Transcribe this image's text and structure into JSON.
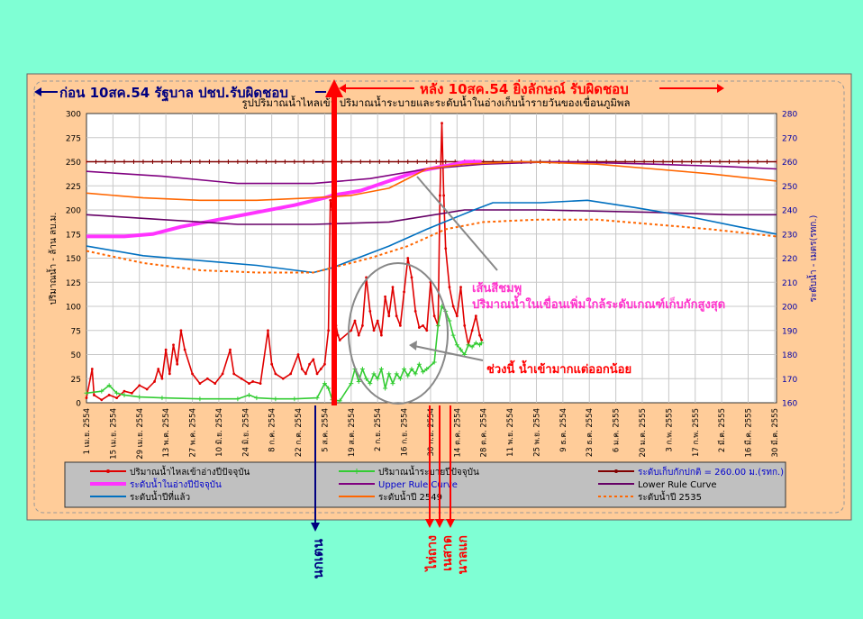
{
  "colors": {
    "page_bg": "#7fffd4",
    "panel_bg": "#ffcc99",
    "plot_bg": "#ffffff",
    "legend_bg": "#c0c0c0",
    "inflow": "#e00000",
    "outflow": "#33cc33",
    "normal_level": "#800000",
    "current_level": "#ff33ff",
    "upper_rule": "#800080",
    "lower_rule": "#660066",
    "last_year": "#0070c0",
    "year_2549": "#ff6600",
    "year_2535": "#ff6600",
    "ann_red": "#ff0000",
    "ann_blue": "#000080",
    "ann_pink": "#ff33cc"
  },
  "annotations": {
    "before": "ก่อน 10สค.54  รัฐบาล ปชป.รับผิดชอบ",
    "after": "หลัง 10สค.54  ยิ่งลักษณ์ รับผิดชอบ",
    "pink_line_1": "เส้นสีชมพู",
    "pink_line_2": "ปริมาณน้ำในเขื่อนเพิ่มใกล้ระดับเกณฑ์เก็บกักสูงสุด",
    "in_out": "ช่วงนี้ น้ำเข้ามากแต่ออกน้อย",
    "nok_ten": "นกเตน",
    "haima": "ไห่ถาง",
    "nesat": "เนสาด",
    "nalgae": "นาลแก"
  },
  "chart_data": {
    "type": "line",
    "title": "รูปปริมาณน้ำไหลเข้า ปริมาณน้ำระบายและระดับน้ำในอ่างเก็บน้ำรายวันของเขื่อนภูมิพล",
    "ylabel": "ปริมาณน้ำ - ล้าน ลบ.ม.",
    "y2label": "ระดับน้ำ - เมตร(รทก.)",
    "ylim": [
      0,
      300
    ],
    "y2lim": [
      160,
      280
    ],
    "yticks": [
      "0",
      "25",
      "50",
      "75",
      "100",
      "125",
      "150",
      "175",
      "200",
      "225",
      "250",
      "275",
      "300"
    ],
    "y2ticks": [
      "160",
      "170",
      "180",
      "190",
      "200",
      "210",
      "220",
      "230",
      "240",
      "250",
      "260",
      "270",
      "280"
    ],
    "xlim": [
      0,
      365
    ],
    "xticks": [
      {
        "day": 0,
        "label": "1 เม.ย. 2554"
      },
      {
        "day": 14,
        "label": "15 เม.ย. 2554"
      },
      {
        "day": 28,
        "label": "29 เม.ย. 2554"
      },
      {
        "day": 42,
        "label": "13 พ.ค. 2554"
      },
      {
        "day": 56,
        "label": "27 พ.ค. 2554"
      },
      {
        "day": 70,
        "label": "10 มิ.ย. 2554"
      },
      {
        "day": 84,
        "label": "24 มิ.ย. 2554"
      },
      {
        "day": 98,
        "label": "8 ก.ค. 2554"
      },
      {
        "day": 112,
        "label": "22 ก.ค. 2554"
      },
      {
        "day": 126,
        "label": "5 ส.ค. 2554"
      },
      {
        "day": 140,
        "label": "19 ส.ค. 2554"
      },
      {
        "day": 154,
        "label": "2 ก.ย. 2554"
      },
      {
        "day": 168,
        "label": "16 ก.ย. 2554"
      },
      {
        "day": 182,
        "label": "30 ก.ย. 2554"
      },
      {
        "day": 196,
        "label": "14 ต.ค. 2554"
      },
      {
        "day": 210,
        "label": "28 ต.ค. 2554"
      },
      {
        "day": 224,
        "label": "11 พ.ย. 2554"
      },
      {
        "day": 238,
        "label": "25 พ.ย. 2554"
      },
      {
        "day": 252,
        "label": "9 ธ.ค. 2554"
      },
      {
        "day": 266,
        "label": "23 ธ.ค. 2554"
      },
      {
        "day": 280,
        "label": "6 ม.ค. 2555"
      },
      {
        "day": 294,
        "label": "20 ม.ค. 2555"
      },
      {
        "day": 308,
        "label": "3 ก.พ. 2555"
      },
      {
        "day": 322,
        "label": "17 ก.พ. 2555"
      },
      {
        "day": 336,
        "label": "2 มี.ค. 2555"
      },
      {
        "day": 350,
        "label": "16 มี.ค. 2555"
      },
      {
        "day": 364,
        "label": "30 มี.ค. 2555"
      }
    ],
    "legend": [
      {
        "key": "inflow",
        "label": "ปริมาณน้ำไหลเข้าอ่างปีปัจจุบัน",
        "style": "marker-line"
      },
      {
        "key": "outflow",
        "label": "ปริมาณน้ำระบายปีปัจจุบัน",
        "style": "cross-line"
      },
      {
        "key": "normal_level",
        "label": "ระดับเก็บกักปกติ = 260.00 ม.(รทก.)",
        "style": "marker-line"
      },
      {
        "key": "current_level",
        "label": "ระดับน้ำในอ่างปีปัจจุบัน",
        "style": "thick-line"
      },
      {
        "key": "upper_rule",
        "label": "Upper  Rule Curve",
        "style": "line"
      },
      {
        "key": "lower_rule",
        "label": "Lower  Rule Curve",
        "style": "line"
      },
      {
        "key": "last_year",
        "label": "ระดับน้ำปีที่แล้ว",
        "style": "line"
      },
      {
        "key": "year_2549",
        "label": "ระดับน้ำปี 2549",
        "style": "line"
      },
      {
        "key": "year_2535",
        "label": "ระดับน้ำปี 2535",
        "style": "dashed-line"
      }
    ],
    "series": [
      {
        "key": "inflow",
        "axis": "left",
        "points": [
          [
            0,
            5
          ],
          [
            3,
            35
          ],
          [
            4,
            8
          ],
          [
            8,
            3
          ],
          [
            12,
            8
          ],
          [
            16,
            5
          ],
          [
            20,
            12
          ],
          [
            24,
            10
          ],
          [
            28,
            18
          ],
          [
            32,
            14
          ],
          [
            36,
            22
          ],
          [
            38,
            35
          ],
          [
            40,
            25
          ],
          [
            42,
            55
          ],
          [
            44,
            30
          ],
          [
            46,
            60
          ],
          [
            48,
            40
          ],
          [
            50,
            75
          ],
          [
            52,
            55
          ],
          [
            56,
            30
          ],
          [
            60,
            20
          ],
          [
            64,
            25
          ],
          [
            68,
            20
          ],
          [
            72,
            30
          ],
          [
            76,
            55
          ],
          [
            78,
            30
          ],
          [
            82,
            25
          ],
          [
            86,
            20
          ],
          [
            88,
            22
          ],
          [
            92,
            20
          ],
          [
            96,
            75
          ],
          [
            98,
            40
          ],
          [
            100,
            30
          ],
          [
            104,
            25
          ],
          [
            108,
            30
          ],
          [
            112,
            50
          ],
          [
            114,
            35
          ],
          [
            116,
            30
          ],
          [
            118,
            40
          ],
          [
            120,
            45
          ],
          [
            122,
            30
          ],
          [
            124,
            35
          ],
          [
            126,
            40
          ],
          [
            128,
            75
          ],
          [
            129,
            210
          ],
          [
            130,
            200
          ],
          [
            131,
            120
          ],
          [
            132,
            80
          ],
          [
            133,
            70
          ],
          [
            134,
            65
          ],
          [
            140,
            75
          ],
          [
            142,
            85
          ],
          [
            144,
            70
          ],
          [
            146,
            80
          ],
          [
            148,
            130
          ],
          [
            150,
            95
          ],
          [
            152,
            75
          ],
          [
            154,
            85
          ],
          [
            156,
            70
          ],
          [
            158,
            110
          ],
          [
            160,
            90
          ],
          [
            162,
            120
          ],
          [
            164,
            90
          ],
          [
            166,
            80
          ],
          [
            168,
            115
          ],
          [
            170,
            150
          ],
          [
            172,
            130
          ],
          [
            174,
            95
          ],
          [
            176,
            78
          ],
          [
            178,
            80
          ],
          [
            180,
            75
          ],
          [
            182,
            125
          ],
          [
            184,
            90
          ],
          [
            186,
            80
          ],
          [
            187,
            215
          ],
          [
            188,
            290
          ],
          [
            189,
            215
          ],
          [
            190,
            160
          ],
          [
            192,
            120
          ],
          [
            194,
            100
          ],
          [
            196,
            90
          ],
          [
            198,
            120
          ],
          [
            200,
            80
          ],
          [
            202,
            60
          ],
          [
            204,
            75
          ],
          [
            206,
            90
          ],
          [
            208,
            70
          ],
          [
            209,
            65
          ]
        ]
      },
      {
        "key": "outflow",
        "axis": "left",
        "points": [
          [
            0,
            10
          ],
          [
            8,
            12
          ],
          [
            12,
            18
          ],
          [
            16,
            10
          ],
          [
            20,
            8
          ],
          [
            28,
            6
          ],
          [
            40,
            5
          ],
          [
            60,
            4
          ],
          [
            80,
            4
          ],
          [
            86,
            8
          ],
          [
            90,
            5
          ],
          [
            100,
            4
          ],
          [
            110,
            4
          ],
          [
            122,
            5
          ],
          [
            126,
            20
          ],
          [
            128,
            15
          ],
          [
            130,
            3
          ],
          [
            134,
            2
          ],
          [
            140,
            20
          ],
          [
            142,
            35
          ],
          [
            144,
            22
          ],
          [
            146,
            35
          ],
          [
            148,
            25
          ],
          [
            150,
            20
          ],
          [
            152,
            30
          ],
          [
            154,
            25
          ],
          [
            156,
            35
          ],
          [
            158,
            15
          ],
          [
            160,
            30
          ],
          [
            162,
            20
          ],
          [
            164,
            30
          ],
          [
            166,
            25
          ],
          [
            168,
            35
          ],
          [
            170,
            28
          ],
          [
            172,
            35
          ],
          [
            174,
            30
          ],
          [
            176,
            40
          ],
          [
            178,
            32
          ],
          [
            180,
            35
          ],
          [
            184,
            42
          ],
          [
            186,
            80
          ],
          [
            188,
            100
          ],
          [
            190,
            95
          ],
          [
            192,
            85
          ],
          [
            194,
            70
          ],
          [
            196,
            60
          ],
          [
            198,
            55
          ],
          [
            200,
            50
          ],
          [
            202,
            60
          ],
          [
            204,
            58
          ],
          [
            206,
            62
          ],
          [
            208,
            60
          ],
          [
            209,
            62
          ]
        ]
      },
      {
        "key": "normal_level",
        "axis": "right",
        "style": "marker",
        "points": [
          [
            0,
            260
          ],
          [
            365,
            260
          ]
        ]
      },
      {
        "key": "current_level",
        "axis": "right",
        "width": 4,
        "points": [
          [
            0,
            229
          ],
          [
            20,
            229
          ],
          [
            35,
            230
          ],
          [
            50,
            233
          ],
          [
            70,
            236
          ],
          [
            90,
            239
          ],
          [
            110,
            242
          ],
          [
            126,
            245
          ],
          [
            130,
            246
          ],
          [
            145,
            248
          ],
          [
            160,
            252
          ],
          [
            175,
            256
          ],
          [
            188,
            258
          ],
          [
            195,
            259
          ],
          [
            200,
            260
          ],
          [
            209,
            260
          ]
        ]
      },
      {
        "key": "upper_rule",
        "axis": "right",
        "points": [
          [
            0,
            256
          ],
          [
            40,
            254
          ],
          [
            80,
            251
          ],
          [
            120,
            251
          ],
          [
            150,
            253
          ],
          [
            180,
            257
          ],
          [
            210,
            259
          ],
          [
            250,
            260
          ],
          [
            300,
            259
          ],
          [
            340,
            258
          ],
          [
            365,
            257
          ]
        ]
      },
      {
        "key": "lower_rule",
        "axis": "right",
        "points": [
          [
            0,
            238
          ],
          [
            40,
            236
          ],
          [
            80,
            234
          ],
          [
            120,
            234
          ],
          [
            160,
            235
          ],
          [
            200,
            240
          ],
          [
            240,
            240
          ],
          [
            300,
            239
          ],
          [
            340,
            238
          ],
          [
            365,
            238
          ]
        ]
      },
      {
        "key": "last_year",
        "axis": "right",
        "points": [
          [
            0,
            225
          ],
          [
            30,
            221
          ],
          [
            60,
            219
          ],
          [
            90,
            217
          ],
          [
            120,
            214
          ],
          [
            130,
            216
          ],
          [
            160,
            225
          ],
          [
            180,
            232
          ],
          [
            205,
            240
          ],
          [
            215,
            243
          ],
          [
            240,
            243
          ],
          [
            265,
            244
          ],
          [
            290,
            241
          ],
          [
            320,
            237
          ],
          [
            345,
            233
          ],
          [
            365,
            230
          ]
        ]
      },
      {
        "key": "year_2549",
        "axis": "right",
        "points": [
          [
            0,
            247
          ],
          [
            30,
            245
          ],
          [
            60,
            244
          ],
          [
            90,
            244
          ],
          [
            120,
            245
          ],
          [
            140,
            246
          ],
          [
            160,
            249
          ],
          [
            180,
            257
          ],
          [
            200,
            259
          ],
          [
            230,
            260
          ],
          [
            270,
            259
          ],
          [
            300,
            257
          ],
          [
            330,
            255
          ],
          [
            365,
            252
          ]
        ]
      },
      {
        "key": "year_2535",
        "axis": "right",
        "style": "dashed",
        "points": [
          [
            0,
            223
          ],
          [
            30,
            218
          ],
          [
            60,
            215
          ],
          [
            90,
            214
          ],
          [
            120,
            214
          ],
          [
            150,
            220
          ],
          [
            170,
            225
          ],
          [
            190,
            232
          ],
          [
            210,
            235
          ],
          [
            240,
            236
          ],
          [
            270,
            236
          ],
          [
            300,
            234
          ],
          [
            330,
            232
          ],
          [
            365,
            229
          ]
        ]
      }
    ]
  }
}
